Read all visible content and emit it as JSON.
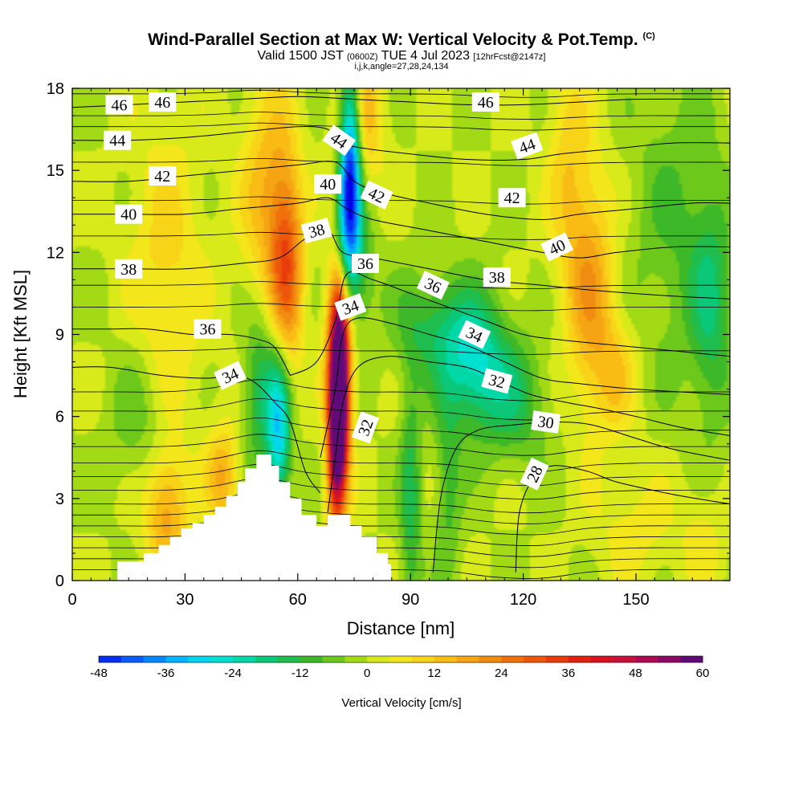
{
  "header": {
    "title": "Wind-Parallel Section at Max W: Vertical Velocity & Pot.Temp.",
    "copyright": "(C)",
    "valid_prefix": "Valid 1500 JST",
    "valid_utc": "(0600Z)",
    "valid_date": "TUE 4 Jul 2023",
    "forecast": "[12hrFcst@2147z]",
    "indices": "i,j,k,angle=27,28,24,134"
  },
  "chart_data": {
    "type": "heatmap",
    "xlabel": "Distance [nm]",
    "ylabel": "Height [Kft MSL]",
    "xlim": [
      0,
      175
    ],
    "ylim": [
      0,
      18
    ],
    "x_ticks": [
      0,
      30,
      60,
      90,
      120,
      150
    ],
    "y_ticks": [
      0,
      3,
      6,
      9,
      12,
      15,
      18
    ],
    "colorbar": {
      "label": "Vertical Velocity [cm/s]",
      "min": -48,
      "max": 60,
      "step": 4,
      "tick_labels": [
        -48,
        -36,
        -24,
        -12,
        0,
        12,
        24,
        36,
        48,
        60
      ]
    },
    "terrain": [
      {
        "x": 12,
        "h": 0.7
      },
      {
        "x": 19,
        "h": 1.0
      },
      {
        "x": 23,
        "h": 1.3
      },
      {
        "x": 26,
        "h": 1.6
      },
      {
        "x": 29,
        "h": 1.9
      },
      {
        "x": 32,
        "h": 2.1
      },
      {
        "x": 35,
        "h": 2.4
      },
      {
        "x": 38,
        "h": 2.7
      },
      {
        "x": 41,
        "h": 3.1
      },
      {
        "x": 44,
        "h": 3.6
      },
      {
        "x": 46,
        "h": 4.1
      },
      {
        "x": 49,
        "h": 4.6
      },
      {
        "x": 53,
        "h": 4.2
      },
      {
        "x": 55,
        "h": 3.6
      },
      {
        "x": 58,
        "h": 3.0
      },
      {
        "x": 61,
        "h": 2.4
      },
      {
        "x": 65,
        "h": 2.0
      },
      {
        "x": 68,
        "h": 2.4
      },
      {
        "x": 74,
        "h": 2.0
      },
      {
        "x": 77,
        "h": 1.6
      },
      {
        "x": 81,
        "h": 1.0
      },
      {
        "x": 84,
        "h": 0.6
      }
    ],
    "velocity_features": [
      {
        "x": 71,
        "z": 7.0,
        "sx": 1.6,
        "sz": 2.2,
        "w": 62
      },
      {
        "x": 71,
        "z": 9.0,
        "sx": 2.4,
        "sz": 4.2,
        "w": 34
      },
      {
        "x": 70,
        "z": 4.5,
        "sx": 1.5,
        "sz": 1.8,
        "w": 30
      },
      {
        "x": 57,
        "z": 11.5,
        "sx": 3.0,
        "sz": 2.6,
        "w": 26
      },
      {
        "x": 52,
        "z": 14.0,
        "sx": 5.0,
        "sz": 3.0,
        "w": 15
      },
      {
        "x": 77,
        "z": 17.0,
        "sx": 4.0,
        "sz": 1.8,
        "w": 16
      },
      {
        "x": 74,
        "z": 15.5,
        "sx": 2.0,
        "sz": 2.5,
        "w": -46
      },
      {
        "x": 72,
        "z": 13.0,
        "sx": 2.5,
        "sz": 2.0,
        "w": -28
      },
      {
        "x": 75,
        "z": 11.5,
        "sx": 3.5,
        "sz": 1.6,
        "w": -14
      },
      {
        "x": 55,
        "z": 5.5,
        "sx": 2.2,
        "sz": 2.0,
        "w": -30
      },
      {
        "x": 50,
        "z": 7.0,
        "sx": 3.0,
        "sz": 2.0,
        "w": -16
      },
      {
        "x": 107,
        "z": 8.0,
        "sx": 6.0,
        "sz": 1.7,
        "w": -24
      },
      {
        "x": 95,
        "z": 9.3,
        "sx": 7.0,
        "sz": 1.4,
        "w": -12
      },
      {
        "x": 118,
        "z": 6.5,
        "sx": 6.0,
        "sz": 1.6,
        "w": -12
      },
      {
        "x": 138,
        "z": 10.5,
        "sx": 4.5,
        "sz": 3.0,
        "w": 18
      },
      {
        "x": 132,
        "z": 15.0,
        "sx": 4.0,
        "sz": 3.0,
        "w": 10
      },
      {
        "x": 145,
        "z": 7.5,
        "sx": 4.0,
        "sz": 1.5,
        "w": 10
      },
      {
        "x": 25,
        "z": 2.5,
        "sx": 4.0,
        "sz": 1.6,
        "w": 18
      },
      {
        "x": 40,
        "z": 3.8,
        "sx": 3.0,
        "sz": 1.3,
        "w": 16
      },
      {
        "x": 25,
        "z": 11.0,
        "sx": 7.0,
        "sz": 4.0,
        "w": 10
      },
      {
        "x": 18,
        "z": 6.0,
        "sx": 6.0,
        "sz": 2.0,
        "w": -8
      },
      {
        "x": 160,
        "z": 13.0,
        "sx": 8.0,
        "sz": 4.0,
        "w": -8
      },
      {
        "x": 170,
        "z": 10.0,
        "sx": 4.0,
        "sz": 3.0,
        "w": -14
      },
      {
        "x": 90,
        "z": 3.0,
        "sx": 2.0,
        "sz": 3.0,
        "w": -14
      },
      {
        "x": 100,
        "z": 3.5,
        "sx": 2.5,
        "sz": 2.5,
        "w": -10
      },
      {
        "x": 150,
        "z": 2.0,
        "sx": 8.0,
        "sz": 1.5,
        "w": 6
      },
      {
        "x": 168,
        "z": 1.5,
        "sx": 4.0,
        "sz": 1.5,
        "w": 6
      }
    ],
    "theta_contours": [
      {
        "value": 28,
        "pts": [
          [
            118,
            0.3
          ],
          [
            119,
            2.5
          ],
          [
            123,
            3.8
          ],
          [
            128,
            4.2
          ],
          [
            137,
            4.0
          ],
          [
            145,
            3.6
          ],
          [
            158,
            3.2
          ],
          [
            166,
            3.0
          ],
          [
            175,
            2.8
          ]
        ]
      },
      {
        "value": 30,
        "pts": [
          [
            96,
            0.3
          ],
          [
            98,
            3.0
          ],
          [
            102,
            4.8
          ],
          [
            108,
            5.5
          ],
          [
            118,
            5.7
          ],
          [
            128,
            5.8
          ],
          [
            138,
            5.7
          ],
          [
            150,
            5.2
          ],
          [
            160,
            4.8
          ],
          [
            175,
            4.4
          ]
        ]
      },
      {
        "value": 32,
        "pts": [
          [
            68,
            2.5
          ],
          [
            70,
            4.5
          ],
          [
            72,
            6.5
          ],
          [
            76,
            7.8
          ],
          [
            84,
            8.2
          ],
          [
            95,
            8.0
          ],
          [
            105,
            7.8
          ],
          [
            112,
            7.4
          ],
          [
            122,
            6.8
          ],
          [
            132,
            6.5
          ],
          [
            140,
            6.3
          ],
          [
            150,
            6.0
          ],
          [
            162,
            5.6
          ],
          [
            175,
            5.3
          ]
        ]
      },
      {
        "value": 34,
        "pts": [
          [
            0,
            7.8
          ],
          [
            10,
            7.8
          ],
          [
            24,
            7.5
          ],
          [
            36,
            7.4
          ],
          [
            42,
            7.5
          ],
          [
            48,
            7.3
          ],
          [
            54,
            6.5
          ],
          [
            58,
            5.8
          ],
          [
            62,
            4.0
          ],
          [
            66,
            3.2
          ]
        ]
      },
      {
        "value": 34,
        "pts": [
          [
            66,
            4.5
          ],
          [
            70,
            7.0
          ],
          [
            72,
            9.0
          ],
          [
            76,
            9.6
          ],
          [
            85,
            9.4
          ],
          [
            95,
            9.0
          ],
          [
            105,
            8.6
          ],
          [
            115,
            8.0
          ],
          [
            125,
            7.4
          ],
          [
            135,
            7.2
          ],
          [
            150,
            7.0
          ],
          [
            175,
            6.8
          ]
        ]
      },
      {
        "value": 36,
        "pts": [
          [
            0,
            9.2
          ],
          [
            10,
            9.2
          ],
          [
            20,
            9.2
          ],
          [
            32,
            9.0
          ],
          [
            42,
            9.0
          ],
          [
            50,
            8.8
          ],
          [
            54,
            8.5
          ],
          [
            58,
            7.5
          ]
        ]
      },
      {
        "value": 36,
        "pts": [
          [
            58,
            7.5
          ],
          [
            65,
            8.0
          ],
          [
            70,
            9.5
          ],
          [
            73,
            11.2
          ],
          [
            80,
            11.0
          ],
          [
            90,
            10.5
          ],
          [
            100,
            10.0
          ],
          [
            110,
            9.5
          ],
          [
            120,
            9.0
          ],
          [
            130,
            8.8
          ],
          [
            145,
            8.6
          ],
          [
            160,
            8.4
          ],
          [
            175,
            8.2
          ]
        ]
      },
      {
        "value": 38,
        "pts": [
          [
            0,
            11.4
          ],
          [
            15,
            11.4
          ],
          [
            30,
            11.4
          ],
          [
            45,
            11.6
          ],
          [
            55,
            11.8
          ],
          [
            62,
            12.5
          ],
          [
            68,
            12.8
          ],
          [
            72,
            12.0
          ],
          [
            80,
            11.8
          ],
          [
            95,
            11.4
          ],
          [
            110,
            11.0
          ],
          [
            125,
            10.8
          ],
          [
            140,
            10.6
          ],
          [
            160,
            10.4
          ],
          [
            175,
            10.3
          ]
        ]
      },
      {
        "value": 40,
        "pts": [
          [
            0,
            13.4
          ],
          [
            15,
            13.4
          ],
          [
            30,
            13.4
          ],
          [
            45,
            13.6
          ],
          [
            60,
            13.8
          ],
          [
            68,
            14.0
          ],
          [
            73,
            13.6
          ],
          [
            80,
            13.2
          ],
          [
            95,
            12.8
          ],
          [
            110,
            12.4
          ],
          [
            125,
            12.0
          ],
          [
            135,
            11.8
          ],
          [
            145,
            12.0
          ],
          [
            160,
            12.2
          ],
          [
            175,
            12.2
          ]
        ]
      },
      {
        "value": 42,
        "pts": [
          [
            0,
            14.6
          ],
          [
            15,
            14.6
          ],
          [
            30,
            14.8
          ],
          [
            45,
            15.0
          ],
          [
            60,
            15.2
          ],
          [
            70,
            15.3
          ],
          [
            75,
            14.6
          ],
          [
            82,
            14.2
          ],
          [
            95,
            13.8
          ],
          [
            110,
            13.4
          ],
          [
            125,
            13.2
          ],
          [
            135,
            13.4
          ],
          [
            150,
            13.6
          ],
          [
            165,
            13.8
          ],
          [
            175,
            13.8
          ]
        ]
      },
      {
        "value": 44,
        "pts": [
          [
            0,
            16.1
          ],
          [
            15,
            16.1
          ],
          [
            30,
            16.2
          ],
          [
            45,
            16.4
          ],
          [
            60,
            16.6
          ],
          [
            68,
            16.5
          ],
          [
            72,
            16.0
          ],
          [
            78,
            15.8
          ],
          [
            90,
            15.6
          ],
          [
            105,
            15.4
          ],
          [
            120,
            15.4
          ],
          [
            130,
            15.6
          ],
          [
            145,
            15.8
          ],
          [
            160,
            16.0
          ],
          [
            175,
            16.0
          ]
        ]
      },
      {
        "value": 46,
        "pts": [
          [
            0,
            17.3
          ],
          [
            15,
            17.4
          ],
          [
            30,
            17.5
          ],
          [
            45,
            17.6
          ],
          [
            60,
            17.7
          ],
          [
            75,
            17.6
          ],
          [
            90,
            17.5
          ],
          [
            105,
            17.4
          ],
          [
            120,
            17.4
          ],
          [
            135,
            17.5
          ],
          [
            150,
            17.6
          ],
          [
            175,
            17.6
          ]
        ]
      }
    ],
    "theta_filler_levels": [
      0.4,
      0.8,
      1.2,
      1.6,
      2.0,
      2.4,
      2.8,
      3.3,
      3.8,
      4.3,
      4.9,
      5.5,
      6.2,
      6.9,
      8.4,
      10.0,
      10.8,
      12.6,
      13.9,
      15.3,
      16.6,
      17.0,
      17.8
    ],
    "contour_labels": [
      {
        "text": "46",
        "x": 12.5,
        "z": 17.4,
        "rot": 0
      },
      {
        "text": "46",
        "x": 24,
        "z": 17.5,
        "rot": 0
      },
      {
        "text": "44",
        "x": 12,
        "z": 16.1,
        "rot": 0
      },
      {
        "text": "42",
        "x": 24,
        "z": 14.8,
        "rot": 0
      },
      {
        "text": "40",
        "x": 15,
        "z": 13.4,
        "rot": 0
      },
      {
        "text": "38",
        "x": 15,
        "z": 11.4,
        "rot": 0
      },
      {
        "text": "36",
        "x": 36,
        "z": 9.2,
        "rot": 0
      },
      {
        "text": "34",
        "x": 42,
        "z": 7.5,
        "rot": -25
      },
      {
        "text": "46",
        "x": 110,
        "z": 17.5,
        "rot": 0
      },
      {
        "text": "44",
        "x": 121,
        "z": 15.9,
        "rot": -20
      },
      {
        "text": "42",
        "x": 117,
        "z": 14.0,
        "rot": 0
      },
      {
        "text": "40",
        "x": 129,
        "z": 12.2,
        "rot": -25
      },
      {
        "text": "38",
        "x": 113,
        "z": 11.1,
        "rot": 0
      },
      {
        "text": "44",
        "x": 71,
        "z": 16.1,
        "rot": 35
      },
      {
        "text": "40",
        "x": 68,
        "z": 14.5,
        "rot": 0
      },
      {
        "text": "42",
        "x": 81,
        "z": 14.1,
        "rot": 25
      },
      {
        "text": "38",
        "x": 65,
        "z": 12.8,
        "rot": -15
      },
      {
        "text": "36",
        "x": 78,
        "z": 11.6,
        "rot": 0
      },
      {
        "text": "36",
        "x": 96,
        "z": 10.8,
        "rot": 25
      },
      {
        "text": "34",
        "x": 74,
        "z": 10.0,
        "rot": -20
      },
      {
        "text": "34",
        "x": 107,
        "z": 9.0,
        "rot": 25
      },
      {
        "text": "32",
        "x": 113,
        "z": 7.3,
        "rot": 15
      },
      {
        "text": "30",
        "x": 126,
        "z": 5.8,
        "rot": 8
      },
      {
        "text": "32",
        "x": 78,
        "z": 5.6,
        "rot": -70
      },
      {
        "text": "28",
        "x": 123,
        "z": 3.9,
        "rot": -65
      }
    ]
  }
}
